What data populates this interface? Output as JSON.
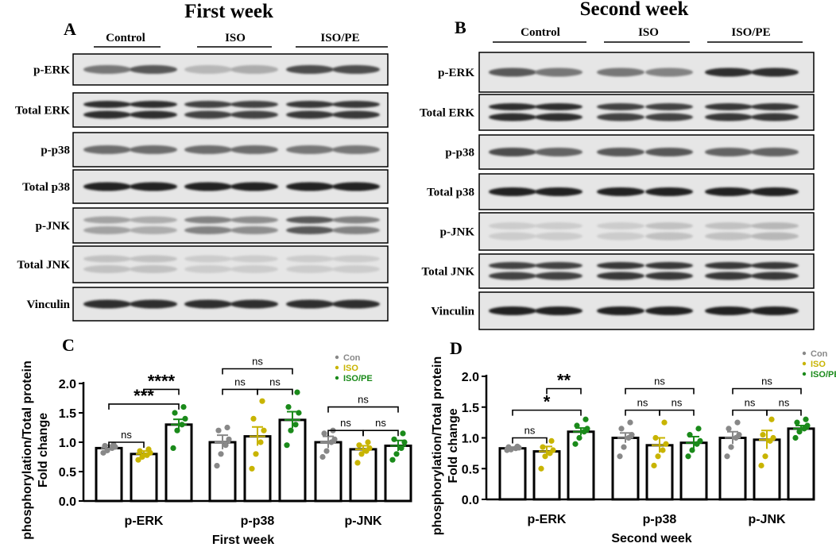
{
  "panels": {
    "a": {
      "letter": "A",
      "title": "First week"
    },
    "b": {
      "letter": "B",
      "title": "Second week"
    },
    "c": {
      "letter": "C"
    },
    "d": {
      "letter": "D"
    }
  },
  "groups": [
    "Control",
    "ISO",
    "ISO/PE"
  ],
  "blot_labels": [
    "p-ERK",
    "Total ERK",
    "p-p38",
    "Total p38",
    "p-JNK",
    "Total JNK",
    "Vinculin"
  ],
  "colors": {
    "con": "#888888",
    "iso": "#c8b400",
    "isope": "#1a8a1a"
  },
  "chart_data": [
    {
      "type": "bar",
      "title": "",
      "xlabel": "First week",
      "ylabel_line1": "phosphorylation/Total protein",
      "ylabel_line2": "Fold change",
      "ylim": [
        0,
        2.0
      ],
      "yticks": [
        0.0,
        0.5,
        1.0,
        1.5,
        2.0
      ],
      "ytick_labels": [
        "0.0",
        "0.5",
        "1.0",
        "1.5",
        "2.0"
      ],
      "categories": [
        "p-ERK",
        "p-p38",
        "p-JNK"
      ],
      "legend": [
        "Con",
        "ISO",
        "ISO/PE"
      ],
      "series": [
        {
          "name": "Con",
          "values": [
            0.9,
            1.0,
            1.0
          ],
          "errors": [
            0.05,
            0.12,
            0.1
          ],
          "points": [
            [
              0.82,
              0.86,
              0.9,
              0.92,
              0.94,
              0.96
            ],
            [
              0.6,
              0.8,
              0.95,
              1.05,
              1.2,
              1.25
            ],
            [
              0.75,
              0.85,
              1.0,
              1.05,
              1.15,
              1.2
            ]
          ]
        },
        {
          "name": "ISO",
          "values": [
            0.8,
            1.1,
            0.88
          ],
          "errors": [
            0.05,
            0.16,
            0.06
          ],
          "points": [
            [
              0.7,
              0.75,
              0.78,
              0.82,
              0.85,
              0.88
            ],
            [
              0.55,
              0.8,
              1.0,
              1.2,
              1.4,
              1.7
            ],
            [
              0.65,
              0.8,
              0.85,
              0.9,
              0.95,
              1.0
            ]
          ]
        },
        {
          "name": "ISO/PE",
          "values": [
            1.3,
            1.38,
            0.94
          ],
          "errors": [
            0.09,
            0.14,
            0.09
          ],
          "points": [
            [
              0.9,
              1.2,
              1.3,
              1.4,
              1.5,
              1.6
            ],
            [
              0.95,
              1.2,
              1.3,
              1.5,
              1.6,
              1.85
            ],
            [
              0.7,
              0.8,
              0.9,
              1.0,
              1.05,
              1.15
            ]
          ]
        }
      ],
      "significance": [
        {
          "cat": 0,
          "from": 0,
          "to": 1,
          "label": "ns",
          "level": 1.0
        },
        {
          "cat": 0,
          "from": 0,
          "to": 2,
          "label": "***",
          "level": 1.65
        },
        {
          "cat": 0,
          "from": 1,
          "to": 2,
          "label": "****",
          "level": 1.9
        },
        {
          "cat": 1,
          "from": 0,
          "to": 1,
          "label": "ns",
          "level": 1.9
        },
        {
          "cat": 1,
          "from": 1,
          "to": 2,
          "label": "ns",
          "level": 1.9
        },
        {
          "cat": 1,
          "from": 0,
          "to": 2,
          "label": "ns",
          "level": 2.25
        },
        {
          "cat": 2,
          "from": 0,
          "to": 1,
          "label": "ns",
          "level": 1.2
        },
        {
          "cat": 2,
          "from": 1,
          "to": 2,
          "label": "ns",
          "level": 1.2
        },
        {
          "cat": 2,
          "from": 0,
          "to": 2,
          "label": "ns",
          "level": 1.6
        }
      ]
    },
    {
      "type": "bar",
      "title": "",
      "xlabel": "Second week",
      "ylabel_line1": "phosphorylation/Total protein",
      "ylabel_line2": "Fold change",
      "ylim": [
        0,
        2.0
      ],
      "yticks": [
        0.0,
        0.5,
        1.0,
        1.5,
        2.0
      ],
      "ytick_labels": [
        "0.0",
        "0.5",
        "1.0",
        "1.5",
        "2.0"
      ],
      "categories": [
        "p-ERK",
        "p-p38",
        "p-JNK"
      ],
      "legend": [
        "Con",
        "ISO",
        "ISO/PE"
      ],
      "series": [
        {
          "name": "Con",
          "values": [
            0.83,
            1.0,
            1.0
          ],
          "errors": [
            0.02,
            0.08,
            0.1
          ],
          "points": [
            [
              0.8,
              0.81,
              0.83,
              0.84,
              0.85,
              0.86
            ],
            [
              0.7,
              0.85,
              1.0,
              1.05,
              1.15,
              1.25
            ],
            [
              0.7,
              0.85,
              1.0,
              1.05,
              1.15,
              1.25
            ]
          ]
        },
        {
          "name": "ISO",
          "values": [
            0.78,
            0.88,
            0.97
          ],
          "errors": [
            0.08,
            0.12,
            0.15
          ],
          "points": [
            [
              0.5,
              0.7,
              0.75,
              0.8,
              0.85,
              0.95
            ],
            [
              0.55,
              0.7,
              0.8,
              0.9,
              1.0,
              1.25
            ],
            [
              0.55,
              0.7,
              0.95,
              1.0,
              1.05,
              1.3
            ]
          ]
        },
        {
          "name": "ISO/PE",
          "values": [
            1.1,
            0.92,
            1.15
          ],
          "errors": [
            0.06,
            0.1,
            0.05
          ],
          "points": [
            [
              0.9,
              1.0,
              1.1,
              1.15,
              1.2,
              1.3
            ],
            [
              0.7,
              0.8,
              0.9,
              0.95,
              1.05,
              1.15
            ],
            [
              1.0,
              1.1,
              1.15,
              1.2,
              1.25,
              1.3
            ]
          ]
        }
      ],
      "significance": [
        {
          "cat": 0,
          "from": 0,
          "to": 1,
          "label": "ns",
          "level": 1.0
        },
        {
          "cat": 0,
          "from": 0,
          "to": 2,
          "label": "*",
          "level": 1.45
        },
        {
          "cat": 0,
          "from": 1,
          "to": 2,
          "label": "**",
          "level": 1.8
        },
        {
          "cat": 1,
          "from": 0,
          "to": 1,
          "label": "ns",
          "level": 1.45
        },
        {
          "cat": 1,
          "from": 1,
          "to": 2,
          "label": "ns",
          "level": 1.45
        },
        {
          "cat": 1,
          "from": 0,
          "to": 2,
          "label": "ns",
          "level": 1.8
        },
        {
          "cat": 2,
          "from": 0,
          "to": 1,
          "label": "ns",
          "level": 1.45
        },
        {
          "cat": 2,
          "from": 1,
          "to": 2,
          "label": "ns",
          "level": 1.45
        },
        {
          "cat": 2,
          "from": 0,
          "to": 2,
          "label": "ns",
          "level": 1.8
        }
      ]
    }
  ]
}
